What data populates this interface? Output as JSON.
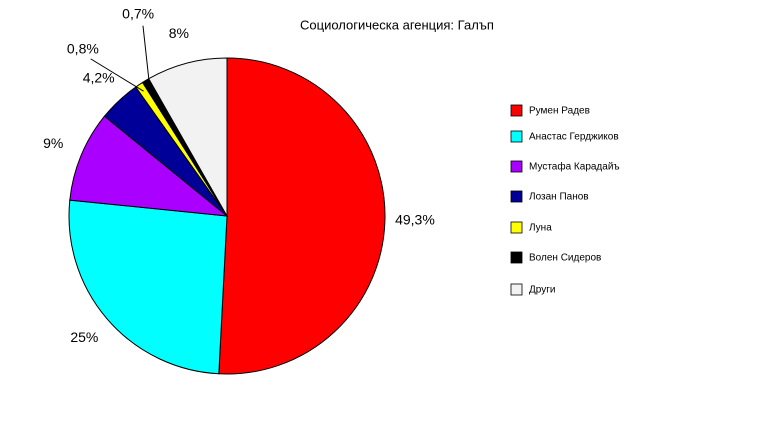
{
  "chart_data": {
    "type": "pie",
    "title": "Социологическа агенция: Галъп",
    "categories": [
      "Румен Радев",
      "Анастас Герджиков",
      "Мустафа Карадайъ",
      "Лозан Панов",
      "Луна",
      "Волен Сидеров",
      "Други"
    ],
    "values": [
      49.3,
      25,
      9,
      4.2,
      0.8,
      0.7,
      8
    ],
    "value_labels": [
      "49,3%",
      "25%",
      "9%",
      "4,2%",
      "0,8%",
      "0,7%",
      "8%"
    ],
    "colors": [
      "#ff0000",
      "#00ffff",
      "#aa00ff",
      "#000099",
      "#ffff00",
      "#000000",
      "#f2f2f2"
    ],
    "legend": "right"
  }
}
